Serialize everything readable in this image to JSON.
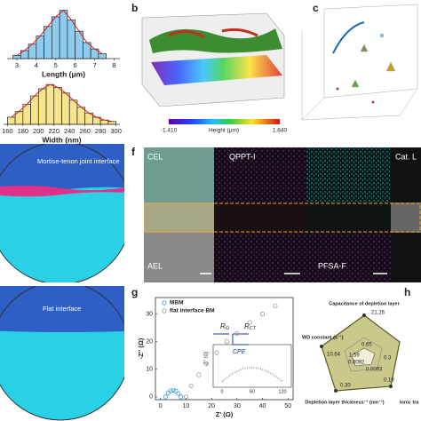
{
  "chart_data": [
    {
      "type": "histogram",
      "xlabel": "Length (μm)",
      "bins": [
        2.8,
        3.2,
        3.6,
        4.0,
        4.4,
        4.8,
        5.2,
        5.6,
        6.0,
        6.4,
        6.8,
        7.2,
        7.6
      ],
      "values": [
        2,
        5,
        9,
        14,
        20,
        26,
        30,
        24,
        17,
        10,
        6,
        3
      ],
      "color": "#8fcdf0",
      "xlim": [
        2.5,
        8.3
      ],
      "xticks": [
        3,
        4,
        5,
        6,
        7,
        8
      ],
      "ylim": [
        0,
        32
      ]
    },
    {
      "type": "histogram",
      "xlabel": "Width (nm)",
      "bins": [
        160,
        170,
        180,
        190,
        200,
        210,
        220,
        230,
        240,
        250,
        260,
        270,
        280,
        290,
        300
      ],
      "values": [
        5,
        9,
        14,
        20,
        25,
        28,
        26,
        22,
        17,
        12,
        8,
        5,
        3,
        2
      ],
      "color": "#f6e58c",
      "xlim": [
        155,
        305
      ],
      "xticks": [
        160,
        180,
        200,
        220,
        240,
        260,
        280,
        300
      ],
      "ylim": [
        0,
        30
      ]
    },
    {
      "type": "scatter",
      "xlabel": "Z' (Ω)",
      "ylabel": "-Z'' (Ω)",
      "xlim": [
        -2,
        52
      ],
      "xticks": [
        0,
        10,
        20,
        30,
        40,
        50
      ],
      "ylim": [
        -1,
        36
      ],
      "yticks": [
        0,
        10,
        20,
        30
      ],
      "legend": "upper left",
      "series": [
        {
          "name": "MBM",
          "color": "#3a9ad9",
          "x": [
            2,
            3,
            4,
            5,
            6,
            7,
            8
          ],
          "values": [
            0,
            1.5,
            2.2,
            2.4,
            2.1,
            1.2,
            0
          ]
        },
        {
          "name": "flat interface BM",
          "color": "#999999",
          "x": [
            10,
            12,
            15,
            18,
            22,
            26,
            30,
            35,
            40,
            45
          ],
          "values": [
            0,
            4,
            8,
            12,
            16,
            20,
            23,
            27,
            30,
            33
          ]
        }
      ]
    }
  ],
  "panels": {
    "b": {
      "letter": "b",
      "cbar_min": "-1.410",
      "cbar_max": "1.840",
      "cbar_label": "Height (μm)"
    },
    "c": {
      "letter": "c"
    },
    "left": {
      "top_label": "Mortise-tenon joint interface",
      "bottom_label": "Flat interface"
    },
    "f": {
      "letter": "f",
      "cells": [
        "CEL",
        "QPPT-I",
        "Cat. L",
        "AEL",
        "PFSA-F"
      ]
    },
    "g": {
      "letter": "g",
      "inset": {
        "r1": "R",
        "r1_sub": "Ω",
        "r2": "R",
        "r2_sub": "CT",
        "cpe": "CPE",
        "ylabel": "-Z'' (Ω)",
        "xticks": [
          "0",
          "60",
          "120"
        ]
      }
    },
    "h": {
      "letter": "h",
      "axes": [
        "Capacitance of depletion layer",
        "WD constant (s⁻¹)",
        "Depletion layer thickness⁻¹ (nm⁻¹)",
        "Ionic tra"
      ],
      "labels": [
        "21.26",
        "10.64",
        "0.65",
        "1.59",
        "0.0092",
        "0.0093",
        "0.30",
        "0.19",
        "0.3"
      ]
    }
  }
}
